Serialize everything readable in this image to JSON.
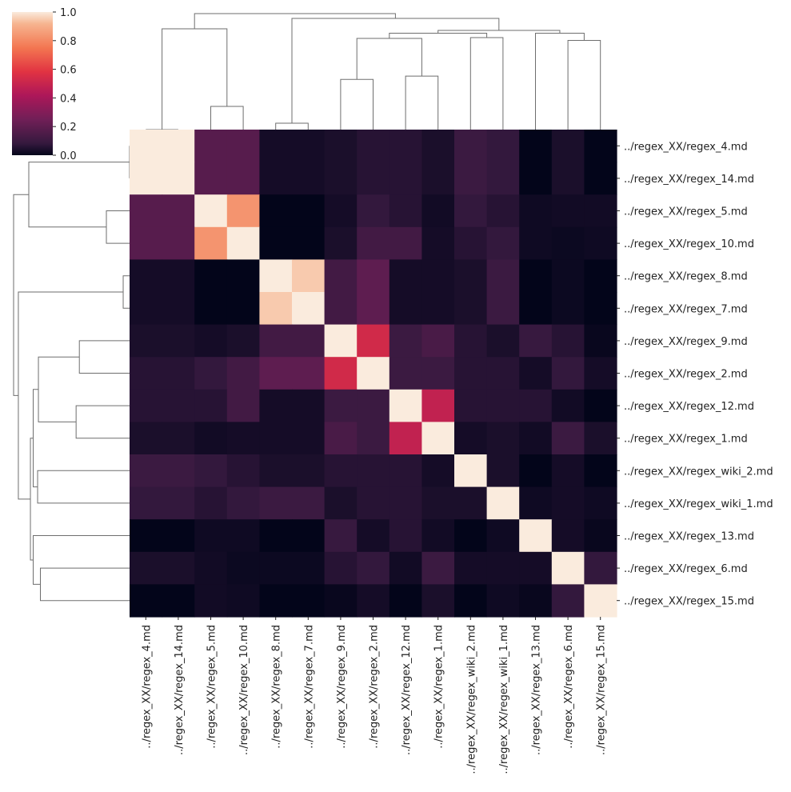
{
  "chart_data": {
    "type": "heatmap",
    "subtype": "clustermap",
    "title": "",
    "labels": [
      "../regex_XX/regex_4.md",
      "../regex_XX/regex_14.md",
      "../regex_XX/regex_5.md",
      "../regex_XX/regex_10.md",
      "../regex_XX/regex_8.md",
      "../regex_XX/regex_7.md",
      "../regex_XX/regex_9.md",
      "../regex_XX/regex_2.md",
      "../regex_XX/regex_12.md",
      "../regex_XX/regex_1.md",
      "../regex_XX/regex_wiki_2.md",
      "../regex_XX/regex_wiki_1.md",
      "../regex_XX/regex_13.md",
      "../regex_XX/regex_6.md",
      "../regex_XX/regex_15.md"
    ],
    "values": [
      [
        1,
        1,
        0.18,
        0.18,
        0.03,
        0.03,
        0.04,
        0.06,
        0.06,
        0.04,
        0.1,
        0.08,
        0.0,
        0.04,
        0.0
      ],
      [
        1,
        1,
        0.18,
        0.18,
        0.03,
        0.03,
        0.04,
        0.06,
        0.06,
        0.04,
        0.1,
        0.08,
        0.0,
        0.04,
        0.0
      ],
      [
        0.18,
        0.18,
        1,
        0.83,
        0.0,
        0.0,
        0.03,
        0.08,
        0.06,
        0.025,
        0.08,
        0.06,
        0.02,
        0.025,
        0.025
      ],
      [
        0.18,
        0.18,
        0.83,
        1,
        0.0,
        0.0,
        0.04,
        0.12,
        0.12,
        0.03,
        0.06,
        0.08,
        0.02,
        0.015,
        0.02
      ],
      [
        0.03,
        0.03,
        0.0,
        0.0,
        1,
        0.95,
        0.12,
        0.2,
        0.03,
        0.03,
        0.04,
        0.1,
        0.0,
        0.015,
        0.0
      ],
      [
        0.03,
        0.03,
        0.0,
        0.0,
        0.95,
        1,
        0.12,
        0.2,
        0.03,
        0.03,
        0.04,
        0.1,
        0.0,
        0.015,
        0.0
      ],
      [
        0.04,
        0.04,
        0.03,
        0.04,
        0.12,
        0.12,
        1,
        0.53,
        0.1,
        0.14,
        0.06,
        0.04,
        0.09,
        0.06,
        0.01
      ],
      [
        0.06,
        0.06,
        0.08,
        0.12,
        0.2,
        0.2,
        0.53,
        1,
        0.1,
        0.1,
        0.06,
        0.06,
        0.03,
        0.08,
        0.03
      ],
      [
        0.06,
        0.06,
        0.06,
        0.12,
        0.03,
        0.03,
        0.1,
        0.1,
        1,
        0.48,
        0.06,
        0.06,
        0.06,
        0.025,
        0.0
      ],
      [
        0.04,
        0.04,
        0.025,
        0.03,
        0.03,
        0.03,
        0.14,
        0.1,
        0.48,
        1,
        0.03,
        0.04,
        0.025,
        0.1,
        0.04
      ],
      [
        0.1,
        0.1,
        0.08,
        0.06,
        0.04,
        0.04,
        0.06,
        0.06,
        0.06,
        0.03,
        1,
        0.04,
        0.0,
        0.03,
        0.0
      ],
      [
        0.08,
        0.08,
        0.06,
        0.08,
        0.1,
        0.1,
        0.04,
        0.06,
        0.06,
        0.04,
        0.04,
        1,
        0.02,
        0.03,
        0.02
      ],
      [
        0.0,
        0.0,
        0.02,
        0.02,
        0.0,
        0.0,
        0.09,
        0.03,
        0.06,
        0.025,
        0.0,
        0.02,
        1,
        0.03,
        0.01
      ],
      [
        0.04,
        0.04,
        0.025,
        0.015,
        0.015,
        0.015,
        0.06,
        0.08,
        0.025,
        0.1,
        0.03,
        0.03,
        0.03,
        1,
        0.08
      ],
      [
        0.0,
        0.0,
        0.025,
        0.02,
        0.0,
        0.0,
        0.01,
        0.03,
        0.0,
        0.04,
        0.0,
        0.02,
        0.01,
        0.08,
        1
      ]
    ],
    "vmin": 0,
    "vmax": 1,
    "colorbar": {
      "ticks": [
        "0.0",
        "0.2",
        "0.4",
        "0.6",
        "0.8",
        "1.0"
      ],
      "tick_values": [
        0,
        0.2,
        0.4,
        0.6,
        0.8,
        1.0
      ],
      "placement": "top-left"
    },
    "colormap": [
      {
        "at": 0.0,
        "color": "#03051a"
      },
      {
        "at": 0.083,
        "color": "#35193e"
      },
      {
        "at": 0.25,
        "color": "#701f57"
      },
      {
        "at": 0.417,
        "color": "#ad1759"
      },
      {
        "at": 0.583,
        "color": "#e13342"
      },
      {
        "at": 0.75,
        "color": "#f37651"
      },
      {
        "at": 0.917,
        "color": "#f6b48f"
      },
      {
        "at": 1.0,
        "color": "#faebdd"
      }
    ],
    "dendrogram": {
      "note": "same linkage for rows and columns; heights normalized to root = 1",
      "tree": {
        "h": 1.0,
        "c": [
          {
            "h": 0.869,
            "c": [
              {
                "h": 0.0,
                "c": [
                  0,
                  1
                ]
              },
              {
                "h": 0.2,
                "c": [
                  2,
                  3
                ]
              }
            ]
          },
          {
            "h": 0.959,
            "c": [
              {
                "h": 0.055,
                "c": [
                  4,
                  5
                ]
              },
              {
                "h": 0.855,
                "c": [
                  {
                    "h": 0.831,
                    "c": [
                      {
                        "h": 0.786,
                        "c": [
                          {
                            "h": 0.433,
                            "c": [
                              6,
                              7
                            ]
                          },
                          {
                            "h": 0.461,
                            "c": [
                              8,
                              9
                            ]
                          }
                        ]
                      },
                      {
                        "h": 0.793,
                        "c": [
                          10,
                          11
                        ]
                      }
                    ]
                  },
                  {
                    "h": 0.831,
                    "c": [
                      12,
                      {
                        "h": 0.769,
                        "c": [
                          13,
                          14
                        ]
                      }
                    ]
                  }
                ]
              }
            ]
          }
        ]
      }
    }
  }
}
